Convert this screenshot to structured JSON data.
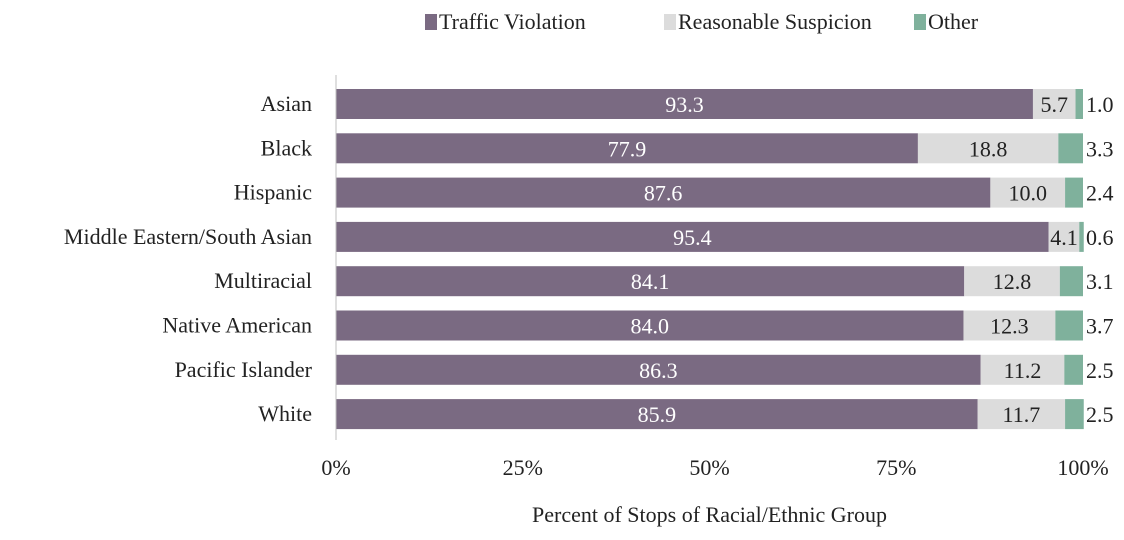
{
  "chart_data": {
    "type": "bar",
    "orientation": "horizontal",
    "stacked": true,
    "title": "",
    "xlabel": "Percent of Stops of Racial/Ethnic Group",
    "ylabel": "",
    "xlim": [
      0,
      100
    ],
    "x_ticks": [
      0,
      25,
      50,
      75,
      100
    ],
    "x_tick_labels": [
      "0%",
      "25%",
      "50%",
      "75%",
      "100%"
    ],
    "grid": false,
    "legend": "top",
    "categories": [
      "Asian",
      "Black",
      "Hispanic",
      "Middle Eastern/South Asian",
      "Multiracial",
      "Native American",
      "Pacific Islander",
      "White"
    ],
    "series": [
      {
        "name": "Traffic Violation",
        "color": "#7a6a82",
        "label_color": "#ffffff",
        "values": [
          93.3,
          77.9,
          87.6,
          95.4,
          84.1,
          84.0,
          86.3,
          85.9
        ],
        "labels": [
          "93.3",
          "77.9",
          "87.6",
          "95.4",
          "84.1",
          "84.0",
          "86.3",
          "85.9"
        ]
      },
      {
        "name": "Reasonable Suspicion",
        "color": "#dcdcdc",
        "label_color": "#222222",
        "values": [
          5.7,
          18.8,
          10.0,
          4.1,
          12.8,
          12.3,
          11.2,
          11.7
        ],
        "labels": [
          "5.7",
          "18.8",
          "10.0",
          "4.1",
          "12.8",
          "12.3",
          "11.2",
          "11.7"
        ]
      },
      {
        "name": "Other",
        "color": "#7fb19c",
        "label_color": "#222222",
        "values": [
          1.0,
          3.3,
          2.4,
          0.6,
          3.1,
          3.7,
          2.5,
          2.5
        ],
        "labels": [
          "1.0",
          "3.3",
          "2.4",
          "0.6",
          "3.1",
          "3.7",
          "2.5",
          "2.5"
        ]
      }
    ]
  }
}
